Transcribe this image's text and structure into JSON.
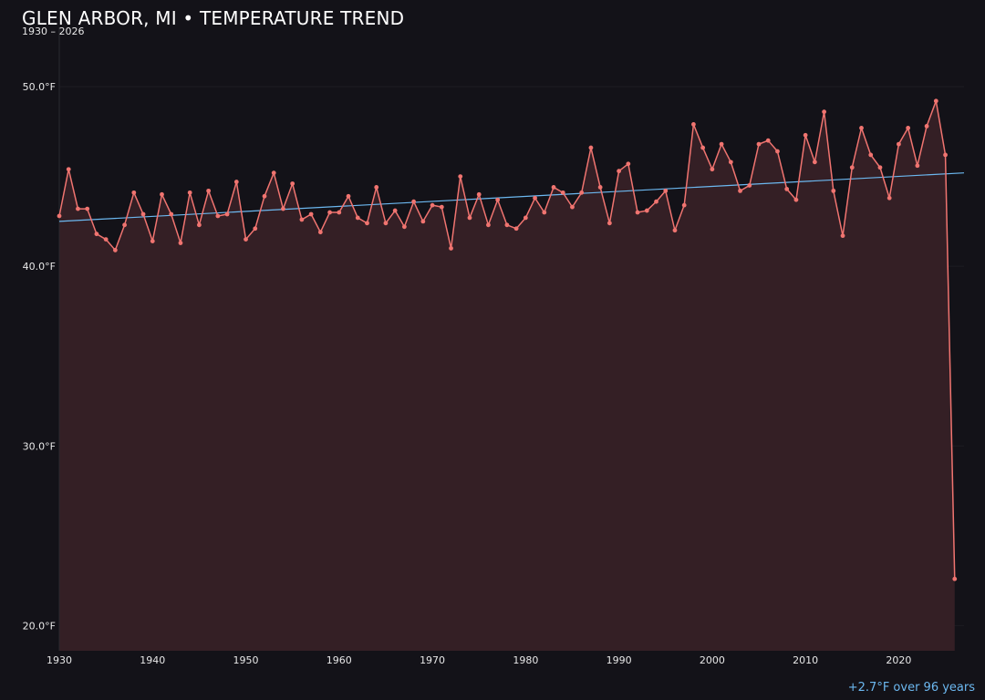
{
  "title": "GLEN ARBOR, MI • TEMPERATURE TREND",
  "subtitle": "1930 – 2026",
  "footnote": "+2.7°F over 96 years",
  "colors": {
    "background": "#131218",
    "series_line": "#f07470",
    "series_fill": "#341f25",
    "trend_line": "#6cb8f0",
    "grid": "#1d1c22"
  },
  "chart_data": {
    "type": "line",
    "x_ticks": [
      1930,
      1940,
      1950,
      1960,
      1970,
      1980,
      1990,
      2000,
      2010,
      2020
    ],
    "x_tick_labels": [
      "1930",
      "1940",
      "1950",
      "1960",
      "1970",
      "1980",
      "1990",
      "2000",
      "2010",
      "2020"
    ],
    "y_ticks": [
      20,
      30,
      40,
      50
    ],
    "y_tick_labels": [
      "20.0°F",
      "30.0°F",
      "40.0°F",
      "50.0°F"
    ],
    "xlim": [
      1930,
      2027
    ],
    "ylim": [
      18.6,
      53.3
    ],
    "grid": true,
    "series": [
      {
        "x": [
          1930,
          1931,
          1932,
          1933,
          1934,
          1935,
          1936,
          1937,
          1938,
          1939,
          1940,
          1941,
          1942,
          1943,
          1944,
          1945,
          1946,
          1947,
          1948,
          1949,
          1950,
          1951,
          1952,
          1953,
          1954,
          1955,
          1956,
          1957,
          1958,
          1959,
          1960,
          1961,
          1962,
          1963,
          1964,
          1965,
          1966,
          1967,
          1968,
          1969,
          1970,
          1971,
          1972,
          1973,
          1974,
          1975,
          1976,
          1977,
          1978,
          1979,
          1980,
          1981,
          1982,
          1983,
          1984,
          1985,
          1986,
          1987,
          1988,
          1989,
          1990,
          1991,
          1992,
          1993,
          1994,
          1995,
          1996,
          1997,
          1998,
          1999,
          2000,
          2001,
          2002,
          2003,
          2004,
          2005,
          2006,
          2007,
          2008,
          2009,
          2010,
          2011,
          2012,
          2013,
          2014,
          2015,
          2016,
          2017,
          2018,
          2019,
          2020,
          2021,
          2022,
          2023,
          2024,
          2025,
          2026
        ],
        "values": [
          42.8,
          45.4,
          43.2,
          43.2,
          41.8,
          41.5,
          40.9,
          42.3,
          44.1,
          42.9,
          41.4,
          44.0,
          42.9,
          41.3,
          44.1,
          42.3,
          44.2,
          42.8,
          42.9,
          44.7,
          41.5,
          42.1,
          43.9,
          45.2,
          43.2,
          44.6,
          42.6,
          42.9,
          41.9,
          43.0,
          43.0,
          43.9,
          42.7,
          42.4,
          44.4,
          42.4,
          43.1,
          42.2,
          43.6,
          42.5,
          43.4,
          43.3,
          41.0,
          45.0,
          42.7,
          44.0,
          42.3,
          43.7,
          42.3,
          42.1,
          42.7,
          43.8,
          43.0,
          44.4,
          44.1,
          43.3,
          44.1,
          46.6,
          44.4,
          42.4,
          45.3,
          45.7,
          43.0,
          43.1,
          43.6,
          44.2,
          42.0,
          43.4,
          47.9,
          46.6,
          45.4,
          46.8,
          45.8,
          44.2,
          44.5,
          46.8,
          47.0,
          46.4,
          44.3,
          43.7,
          47.3,
          45.8,
          48.6,
          44.2,
          41.7,
          45.5,
          47.7,
          46.2,
          45.5,
          43.8,
          46.8,
          47.7,
          45.6,
          47.8,
          49.2,
          46.2,
          22.6
        ]
      }
    ],
    "trend": {
      "x": [
        1930,
        2027
      ],
      "values": [
        42.5,
        45.2
      ]
    }
  }
}
